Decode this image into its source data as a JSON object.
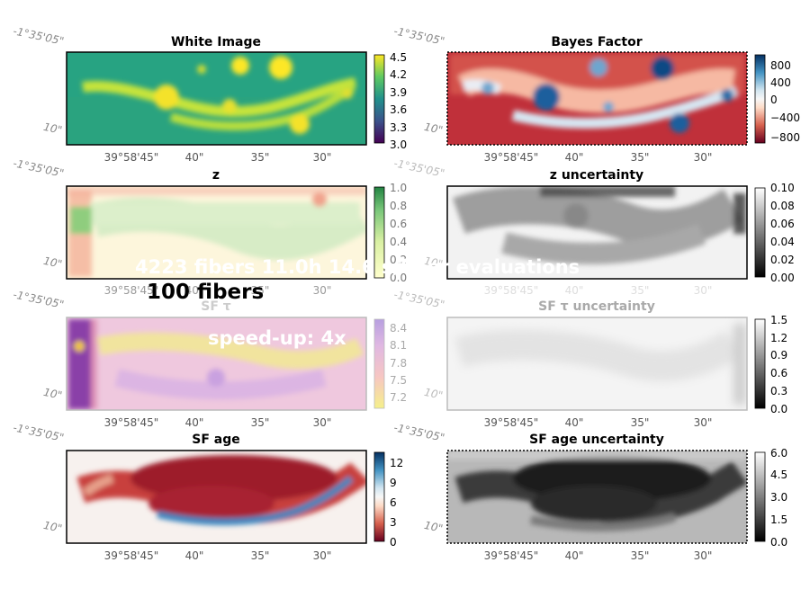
{
  "colors": {
    "viridis": [
      "#440154",
      "#3b528b",
      "#21918c",
      "#5ec962",
      "#fde725"
    ],
    "rdbu": [
      "#67001f",
      "#d6604d",
      "#fddbc7",
      "#f7f7f7",
      "#d1e5f0",
      "#4393c3",
      "#053061"
    ],
    "ylgn": [
      "#ffffcc",
      "#d9f0a3",
      "#78c679",
      "#238443"
    ],
    "gray": [
      "#000000",
      "#ffffff"
    ],
    "sftau": [
      "#f5f08a",
      "#f7c6c2",
      "#e0b8e2",
      "#b79fe0"
    ],
    "spine_dark": "#000000",
    "spine_faded": "#bbbbbb",
    "tick_text": "#555555",
    "dec_text": "#888888"
  },
  "chart_data": [
    {
      "type": "heatmap",
      "title": "White Image",
      "ra_ticks": [
        "39°58'45\"",
        "40\"",
        "35\"",
        "30\""
      ],
      "dec_ticks": [
        "-1°35'05\"",
        "10\""
      ],
      "cmap": "viridis",
      "clim": [
        3.0,
        4.5
      ],
      "cbar_ticks": [
        "3.0",
        "3.3",
        "3.6",
        "3.9",
        "4.2",
        "4.5"
      ]
    },
    {
      "type": "heatmap",
      "title": "Bayes Factor",
      "ra_ticks": [
        "39°58'45\"",
        "40\"",
        "35\"",
        "30\""
      ],
      "dec_ticks": [
        "-1°35'05\"",
        "10\""
      ],
      "cmap": "rdbu",
      "clim": [
        -1000,
        1000
      ],
      "cbar_ticks": [
        "−800",
        "−400",
        "0",
        "400",
        "800"
      ]
    },
    {
      "type": "heatmap",
      "title": "z",
      "ra_ticks": [
        "39°58'45\"",
        "40\"",
        "35\"",
        "30\""
      ],
      "dec_ticks": [
        "-1°35'05\"",
        "10\""
      ],
      "cmap": "ylgn",
      "clim": [
        0.0,
        1.0
      ],
      "cbar_ticks": [
        "0.0",
        "0.2",
        "0.4",
        "0.6",
        "0.8",
        "1.0"
      ]
    },
    {
      "type": "heatmap",
      "title": "z uncertainty",
      "ra_ticks": [
        "39°58'45\"",
        "40\"",
        "35\"",
        "30\""
      ],
      "dec_ticks": [
        "-1°35'05\"",
        "10\""
      ],
      "cmap": "gray",
      "clim": [
        0.0,
        0.1
      ],
      "cbar_ticks": [
        "0.00",
        "0.02",
        "0.04",
        "0.06",
        "0.08",
        "0.10"
      ]
    },
    {
      "type": "heatmap",
      "title": "SF τ",
      "ra_ticks": [
        "39°58'45\"",
        "40\"",
        "35\"",
        "30\""
      ],
      "dec_ticks": [
        "-1°35'05\"",
        "10\""
      ],
      "cmap": "sftau",
      "clim": [
        7.05,
        8.55
      ],
      "cbar_ticks": [
        "7.2",
        "7.5",
        "7.8",
        "8.1",
        "8.4"
      ]
    },
    {
      "type": "heatmap",
      "title": "SF τ uncertainty",
      "ra_ticks": [
        "39°58'45\"",
        "40\"",
        "35\"",
        "30\""
      ],
      "dec_ticks": [
        "-1°35'05\"",
        "10\""
      ],
      "cmap": "gray",
      "clim": [
        0.0,
        1.5
      ],
      "cbar_ticks": [
        "0.0",
        "0.3",
        "0.6",
        "0.9",
        "1.2",
        "1.5"
      ]
    },
    {
      "type": "heatmap",
      "title": "SF age",
      "ra_ticks": [
        "39°58'45\"",
        "40\"",
        "35\"",
        "30\""
      ],
      "dec_ticks": [
        "-1°35'05\"",
        "10\""
      ],
      "cmap": "rdbu",
      "clim": [
        0,
        13.5
      ],
      "cbar_ticks": [
        "0",
        "3",
        "6",
        "9",
        "12"
      ]
    },
    {
      "type": "heatmap",
      "title": "SF age uncertainty",
      "ra_ticks": [
        "39°58'45\"",
        "40\"",
        "35\"",
        "30\""
      ],
      "dec_ticks": [
        "-1°35'05\"",
        "10\""
      ],
      "cmap": "gray",
      "clim": [
        0.0,
        6.0
      ],
      "cbar_ticks": [
        "0.0",
        "1.5",
        "3.0",
        "4.5",
        "6.0"
      ]
    }
  ],
  "overlay": {
    "line1": "4223 fibers   11.0h   14.6 s/fiber evaluations",
    "line2": "100 fibers",
    "line3": "speed-up: 4x"
  }
}
